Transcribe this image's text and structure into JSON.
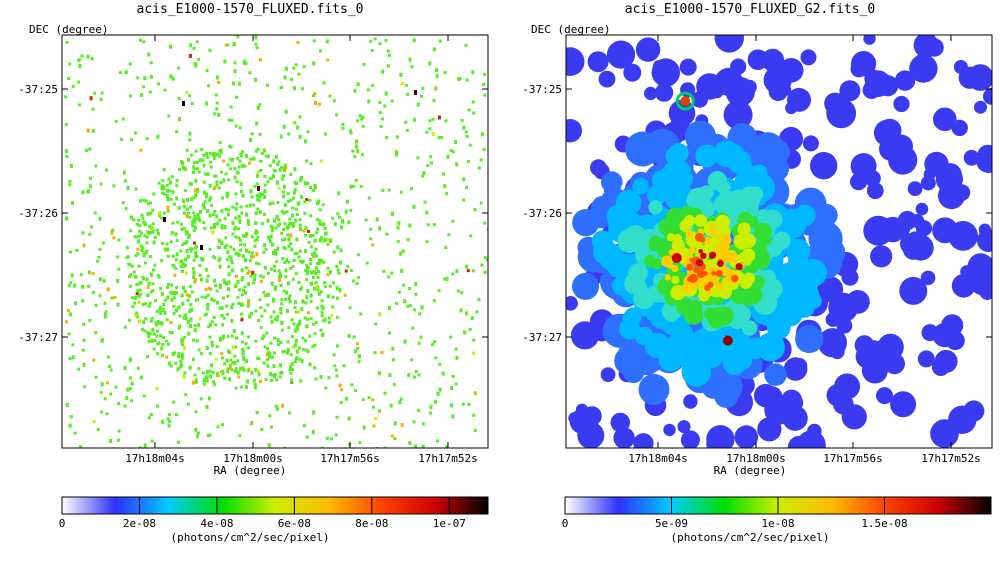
{
  "panels": [
    {
      "title": "acis_E1000-1570_FLUXED.fits_0",
      "dec_label": "DEC (degree)",
      "ra_label": "RA (degree)",
      "units_label": "(photons/cm^2/sec/pixel)"
    },
    {
      "title": "acis_E1000-1570_FLUXED_G2.fits_0",
      "dec_label": "DEC (degree)",
      "ra_label": "RA (degree)",
      "units_label": "(photons/cm^2/sec/pixel)"
    }
  ],
  "chart_data": [
    {
      "type": "heatmap",
      "title": "acis_E1000-1570_FLUXED.fits_0",
      "xlabel": "RA (degree)",
      "ylabel": "DEC (degree)",
      "x_ticks": [
        "17h18m04s",
        "17h18m00s",
        "17h17m56s",
        "17h17m52s"
      ],
      "y_ticks": [
        "-37:25",
        "-37:26",
        "-37:27"
      ],
      "colorbar": {
        "label": "(photons/cm^2/sec/pixel)",
        "ticks": [
          "0",
          "2e-08",
          "4e-08",
          "6e-08",
          "8e-08",
          "1e-07"
        ],
        "tick_values": [
          0,
          2e-08,
          4e-08,
          6e-08,
          8e-08,
          1e-07
        ],
        "max": 1.1e-07,
        "colors": [
          "#ffffff",
          "#3030ff",
          "#00ccff",
          "#00dd00",
          "#ccee00",
          "#ffbb00",
          "#ff4400",
          "#cc0000",
          "#000000"
        ]
      },
      "grid": false,
      "texture": "sparse"
    },
    {
      "type": "heatmap",
      "title": "acis_E1000-1570_FLUXED_G2.fits_0",
      "xlabel": "RA (degree)",
      "ylabel": "DEC (degree)",
      "x_ticks": [
        "17h18m04s",
        "17h18m00s",
        "17h17m56s",
        "17h17m52s"
      ],
      "y_ticks": [
        "-37:25",
        "-37:26",
        "-37:27"
      ],
      "colorbar": {
        "label": "(photons/cm^2/sec/pixel)",
        "ticks": [
          "0",
          "5e-09",
          "1e-08",
          "1.5e-08"
        ],
        "tick_values": [
          0,
          5e-09,
          1e-08,
          1.5e-08
        ],
        "max": 2e-08,
        "colors": [
          "#ffffff",
          "#3030ff",
          "#00ccff",
          "#00dd00",
          "#ccee00",
          "#ffbb00",
          "#ff4400",
          "#cc0000",
          "#000000"
        ]
      },
      "grid": false,
      "texture": "smoothed"
    }
  ]
}
